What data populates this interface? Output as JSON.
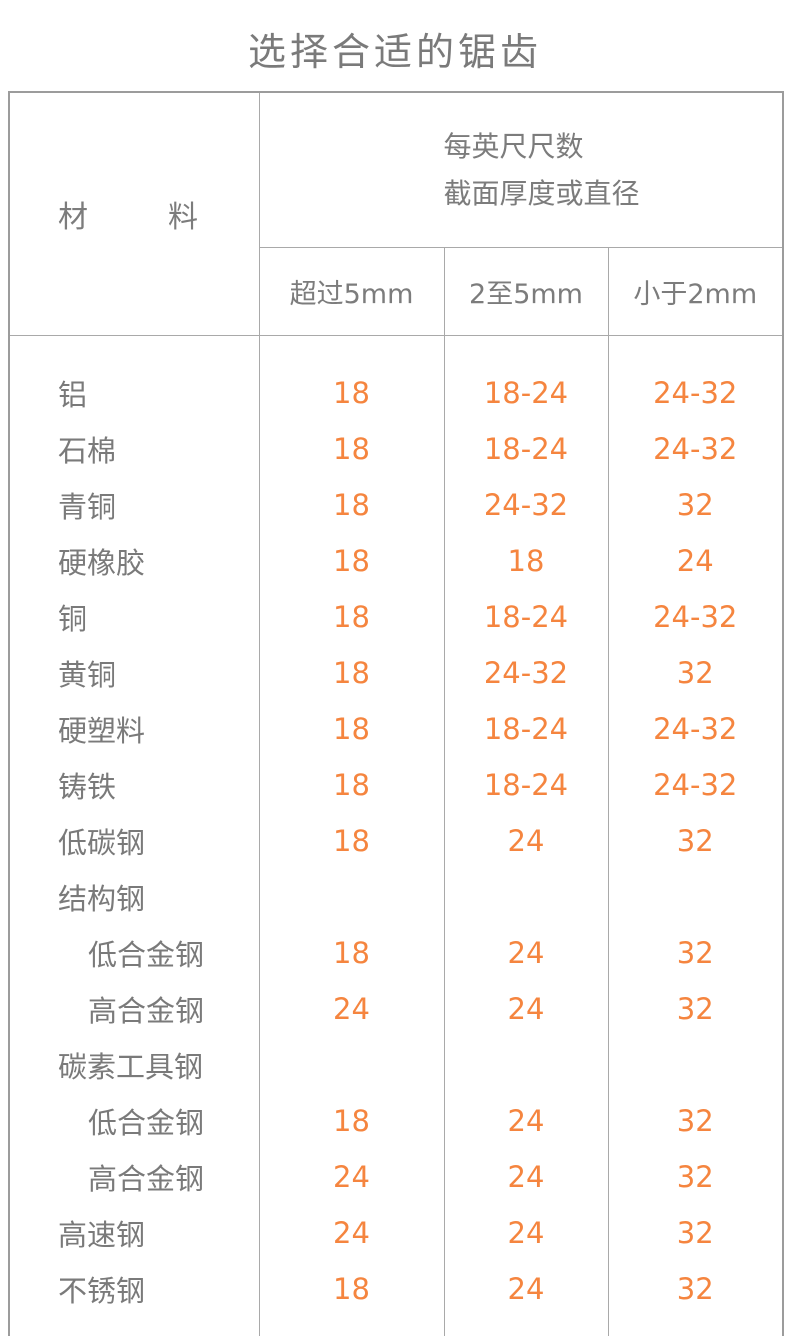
{
  "title": "选择合适的锯齿",
  "colors": {
    "value_orange": "#f5853f",
    "text_gray": "#7a7a7a",
    "border_gray": "#a9a9a9"
  },
  "chart_data": {
    "type": "table",
    "title": "选择合适的锯齿",
    "material_header": {
      "left": "材",
      "right": "料"
    },
    "group_header_line1": "每英尺尺数",
    "group_header_line2": "截面厚度或直径",
    "columns": [
      "超过5mm",
      "2至5mm",
      "小于2mm"
    ],
    "rows": [
      {
        "material": "铝",
        "indent": false,
        "values": [
          "18",
          "18-24",
          "24-32"
        ]
      },
      {
        "material": "石棉",
        "indent": false,
        "values": [
          "18",
          "18-24",
          "24-32"
        ]
      },
      {
        "material": "青铜",
        "indent": false,
        "values": [
          "18",
          "24-32",
          "32"
        ]
      },
      {
        "material": "硬橡胶",
        "indent": false,
        "values": [
          "18",
          "18",
          "24"
        ]
      },
      {
        "material": "铜",
        "indent": false,
        "values": [
          "18",
          "18-24",
          "24-32"
        ]
      },
      {
        "material": "黄铜",
        "indent": false,
        "values": [
          "18",
          "24-32",
          "32"
        ]
      },
      {
        "material": "硬塑料",
        "indent": false,
        "values": [
          "18",
          "18-24",
          "24-32"
        ]
      },
      {
        "material": "铸铁",
        "indent": false,
        "values": [
          "18",
          "18-24",
          "24-32"
        ]
      },
      {
        "material": "低碳钢",
        "indent": false,
        "values": [
          "18",
          "24",
          "32"
        ]
      },
      {
        "material": "结构钢",
        "indent": false,
        "values": [
          "",
          "",
          ""
        ]
      },
      {
        "material": "低合金钢",
        "indent": true,
        "values": [
          "18",
          "24",
          "32"
        ]
      },
      {
        "material": "高合金钢",
        "indent": true,
        "values": [
          "24",
          "24",
          "32"
        ]
      },
      {
        "material": "碳素工具钢",
        "indent": false,
        "values": [
          "",
          "",
          ""
        ]
      },
      {
        "material": "低合金钢",
        "indent": true,
        "values": [
          "18",
          "24",
          "32"
        ]
      },
      {
        "material": "高合金钢",
        "indent": true,
        "values": [
          "24",
          "24",
          "32"
        ]
      },
      {
        "material": "高速钢",
        "indent": false,
        "values": [
          "24",
          "24",
          "32"
        ]
      },
      {
        "material": "不锈钢",
        "indent": false,
        "values": [
          "18",
          "24",
          "32"
        ]
      }
    ]
  }
}
